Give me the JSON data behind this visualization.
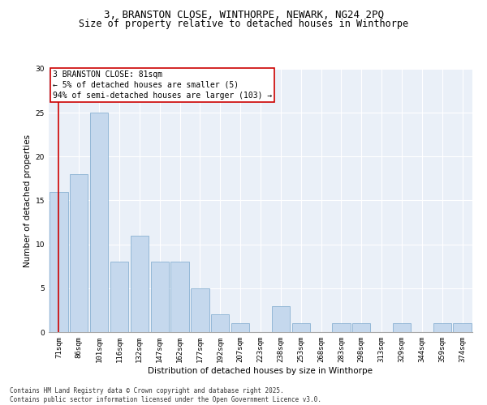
{
  "title_line1": "3, BRANSTON CLOSE, WINTHORPE, NEWARK, NG24 2PQ",
  "title_line2": "Size of property relative to detached houses in Winthorpe",
  "xlabel": "Distribution of detached houses by size in Winthorpe",
  "ylabel": "Number of detached properties",
  "categories": [
    "71sqm",
    "86sqm",
    "101sqm",
    "116sqm",
    "132sqm",
    "147sqm",
    "162sqm",
    "177sqm",
    "192sqm",
    "207sqm",
    "223sqm",
    "238sqm",
    "253sqm",
    "268sqm",
    "283sqm",
    "298sqm",
    "313sqm",
    "329sqm",
    "344sqm",
    "359sqm",
    "374sqm"
  ],
  "values": [
    16,
    18,
    25,
    8,
    11,
    8,
    8,
    5,
    2,
    1,
    0,
    3,
    1,
    0,
    1,
    1,
    0,
    1,
    0,
    1,
    1
  ],
  "bar_color": "#c5d8ed",
  "bar_edge_color": "#7ba8cc",
  "vline_color": "#cc0000",
  "annotation_box_text": "3 BRANSTON CLOSE: 81sqm\n← 5% of detached houses are smaller (5)\n94% of semi-detached houses are larger (103) →",
  "ylim": [
    0,
    30
  ],
  "yticks": [
    0,
    5,
    10,
    15,
    20,
    25,
    30
  ],
  "bg_color": "#eaf0f8",
  "footer_text": "Contains HM Land Registry data © Crown copyright and database right 2025.\nContains public sector information licensed under the Open Government Licence v3.0.",
  "title_fontsize": 9,
  "subtitle_fontsize": 8.5,
  "axis_label_fontsize": 7.5,
  "tick_fontsize": 6.5,
  "annotation_fontsize": 7,
  "footer_fontsize": 5.5
}
